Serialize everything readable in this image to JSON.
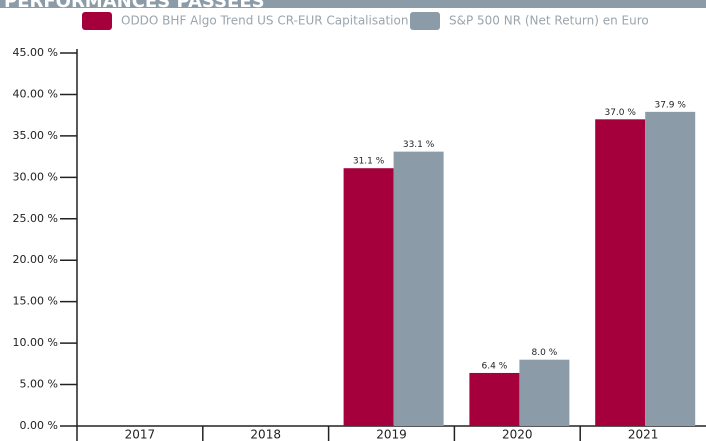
{
  "chart_data": {
    "type": "bar",
    "title": "PERFORMANCES PASSÉES",
    "categories": [
      "2017",
      "2018",
      "2019",
      "2020",
      "2021"
    ],
    "series": [
      {
        "name": "ODDO BHF Algo Trend US CR-EUR Capitalisation",
        "color": "#a5003c",
        "values": [
          null,
          null,
          31.1,
          6.4,
          37.0
        ],
        "value_labels": [
          null,
          null,
          "31.1 %",
          "6.4 %",
          "37.0 %"
        ]
      },
      {
        "name": "S&P 500 NR (Net Return) en Euro",
        "color": "#8b9ca8",
        "values": [
          null,
          null,
          33.1,
          8.0,
          37.9
        ],
        "value_labels": [
          null,
          null,
          "33.1 %",
          "8.0 %",
          "37.9 %"
        ]
      }
    ],
    "ylim": [
      0,
      45
    ],
    "yticks": [
      {
        "value": 0,
        "label": "0.00 %"
      },
      {
        "value": 5,
        "label": "5.00 %"
      },
      {
        "value": 10,
        "label": "10.00 %"
      },
      {
        "value": 15,
        "label": "15.00 %"
      },
      {
        "value": 20,
        "label": "20.00 %"
      },
      {
        "value": 25,
        "label": "25.00 %"
      },
      {
        "value": 30,
        "label": "30.00 %"
      },
      {
        "value": 35,
        "label": "35.00 %"
      },
      {
        "value": 40,
        "label": "40.00 %"
      },
      {
        "value": 45,
        "label": "45.00 %"
      }
    ],
    "legend": "top"
  }
}
